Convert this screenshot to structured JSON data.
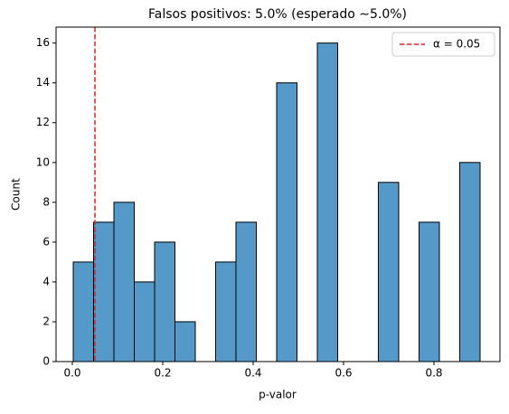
{
  "chart_data": {
    "type": "histogram",
    "title": "Falsos positivos: 5.0% (esperado ∼5.0%)",
    "x_label": "p-valor",
    "y_label": "Count",
    "bins": [
      0.002,
      0.047,
      0.092,
      0.137,
      0.182,
      0.227,
      0.272,
      0.317,
      0.362,
      0.407,
      0.452,
      0.497,
      0.542,
      0.587,
      0.632,
      0.677,
      0.722,
      0.767,
      0.812,
      0.857,
      0.902
    ],
    "counts": [
      5,
      7,
      8,
      4,
      6,
      2,
      0,
      5,
      7,
      0,
      14,
      0,
      16,
      0,
      0,
      9,
      0,
      7,
      0,
      10
    ],
    "color": "#5599c8",
    "xlim": [
      -0.036,
      0.946
    ],
    "ylim": [
      0,
      16.8
    ],
    "xticks": [
      {
        "value": 0.0,
        "label": "0.0"
      },
      0.2,
      0.4,
      0.6,
      0.8
    ],
    "yticks": [
      0,
      2,
      4,
      6,
      8,
      10,
      12,
      14,
      16
    ],
    "vline": {
      "value": 0.05,
      "label": "α = 0.05",
      "color": "#d62728"
    },
    "legend": "upper right"
  }
}
